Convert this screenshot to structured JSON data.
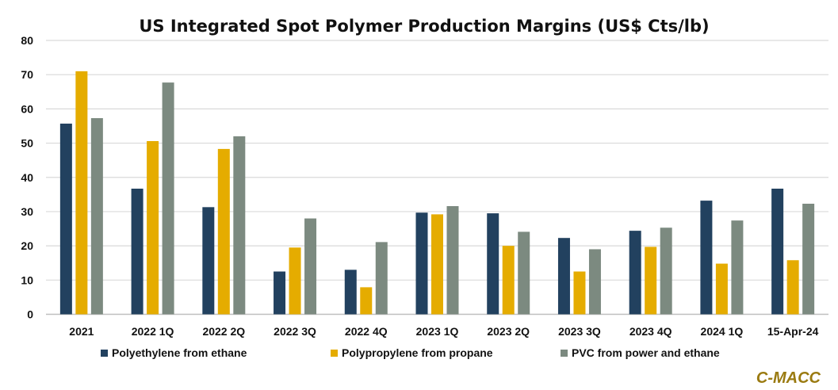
{
  "chart_data": {
    "type": "bar",
    "title": "US Integrated Spot Polymer Production Margins (US$ Cts/lb)",
    "xlabel": "",
    "ylabel": "",
    "ylim": [
      0,
      80
    ],
    "yticks": [
      0,
      10,
      20,
      30,
      40,
      50,
      60,
      70,
      80
    ],
    "grid": true,
    "legend_placement": "bottom",
    "categories": [
      "2021",
      "2022 1Q",
      "2022 2Q",
      "2022 3Q",
      "2022 4Q",
      "2023 1Q",
      "2023 2Q",
      "2023 3Q",
      "2023 4Q",
      "2024 1Q",
      "15-Apr-24"
    ],
    "series": [
      {
        "name": "Polyethylene from ethane",
        "color": "#22415f",
        "values": [
          55.7,
          36.7,
          31.3,
          12.5,
          13.0,
          29.7,
          29.5,
          22.3,
          24.4,
          33.2,
          36.7
        ]
      },
      {
        "name": "Polypropylene from propane",
        "color": "#e5ac00",
        "values": [
          71.0,
          50.6,
          48.3,
          19.5,
          7.9,
          29.2,
          20.0,
          12.5,
          19.7,
          14.8,
          15.8
        ]
      },
      {
        "name": "PVC from power and ethane",
        "color": "#7c8a80",
        "values": [
          57.3,
          67.7,
          52.0,
          28.0,
          21.1,
          31.6,
          24.1,
          19.0,
          25.3,
          27.4,
          32.3
        ]
      }
    ]
  },
  "logo": "C-MACC"
}
